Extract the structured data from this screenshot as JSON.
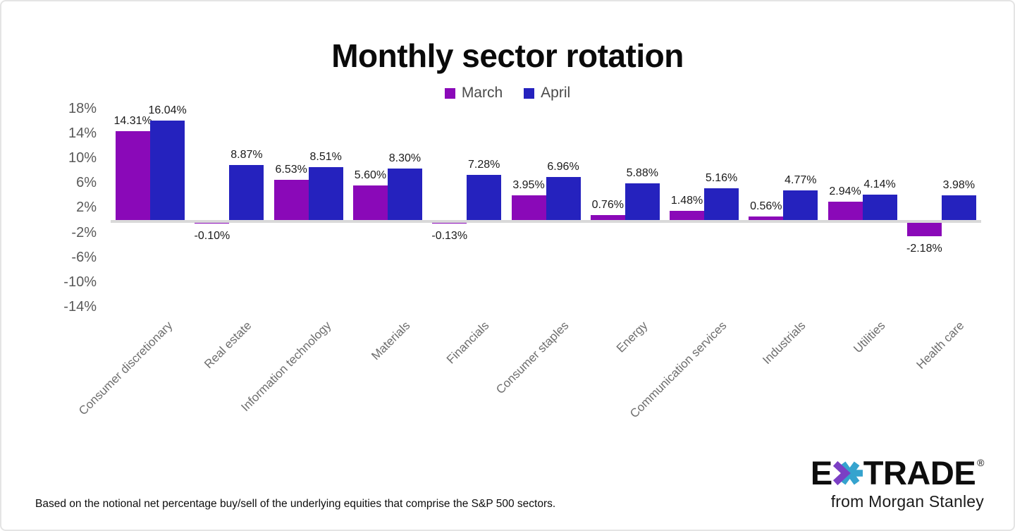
{
  "page": {
    "footnote": "Based on the notional net percentage buy/sell of the underlying equities that comprise the S&P 500 sectors.",
    "brand": {
      "wordmark_left": "E",
      "wordmark_right": "TRADE",
      "registered": "®",
      "tagline": "from Morgan Stanley"
    }
  },
  "colors": {
    "march_purple": "#8A09B8",
    "april_blue": "#2522BE",
    "axis_line": "#D9D9D9",
    "tick_text": "#595959",
    "x_label_text": "#6E6E6E",
    "value_text": "#1A1A1A",
    "legend_text": "#4A4A4A",
    "logo_purple": "#7B3FC4",
    "logo_teal": "#35A3CE"
  },
  "chart_data": {
    "type": "bar",
    "title": "Monthly sector rotation",
    "categories": [
      "Consumer discretionary",
      "Real estate",
      "Information technology",
      "Materials",
      "Financials",
      "Consumer staples",
      "Energy",
      "Communication services",
      "Industrials",
      "Utilities",
      "Health care"
    ],
    "series": [
      {
        "name": "March",
        "color": "#8A09B8",
        "values": [
          14.31,
          -0.1,
          6.53,
          5.6,
          -0.13,
          3.95,
          0.76,
          1.48,
          0.56,
          2.94,
          -2.18
        ],
        "labels": [
          "14.31%",
          "-0.10%",
          "6.53%",
          "5.60%",
          "-0.13%",
          "3.95%",
          "0.76%",
          "1.48%",
          "0.56%",
          "2.94%",
          "-2.18%"
        ]
      },
      {
        "name": "April",
        "color": "#2522BE",
        "values": [
          16.04,
          8.87,
          8.51,
          8.3,
          7.28,
          6.96,
          5.88,
          5.16,
          4.77,
          4.14,
          3.98
        ],
        "labels": [
          "16.04%",
          "8.87%",
          "8.51%",
          "8.30%",
          "7.28%",
          "6.96%",
          "5.88%",
          "5.16%",
          "4.77%",
          "4.14%",
          "3.98%"
        ]
      }
    ],
    "y_ticks": [
      18,
      14,
      10,
      6,
      2,
      -2,
      -6,
      -10,
      -14
    ],
    "y_tick_labels": [
      "18%",
      "14%",
      "10%",
      "6%",
      "2%",
      "-2%",
      "-6%",
      "-10%",
      "-14%"
    ],
    "ylim": [
      -16,
      19
    ],
    "xlabel": "",
    "ylabel": "",
    "grid": false,
    "legend_position": "top-center",
    "value_labels_shown": true
  }
}
